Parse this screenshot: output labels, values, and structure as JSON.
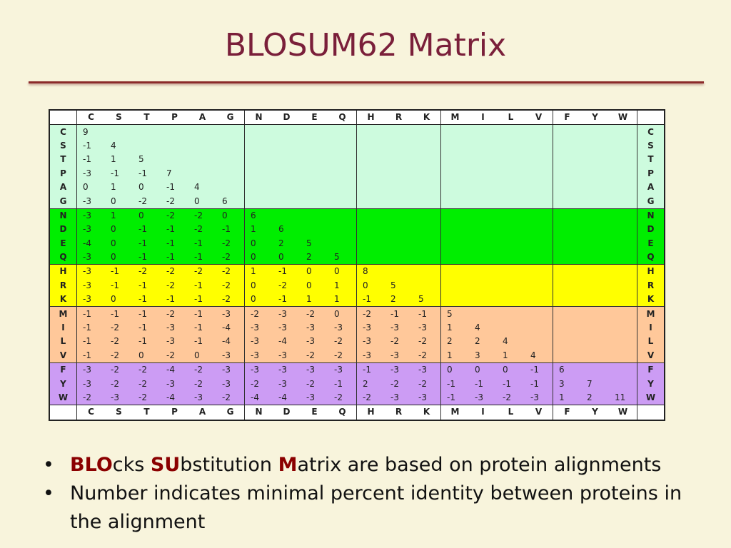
{
  "title": "BLOSUM62 Matrix",
  "matrix": {
    "labels": [
      "C",
      "S",
      "T",
      "P",
      "A",
      "G",
      "N",
      "D",
      "E",
      "Q",
      "H",
      "R",
      "K",
      "M",
      "I",
      "L",
      "V",
      "F",
      "Y",
      "W"
    ],
    "group_sizes": [
      6,
      4,
      3,
      4,
      3
    ],
    "group_colors": [
      "#cdfbde",
      "#00ee00",
      "#ffff00",
      "#ffc89a",
      "#cc9cf4"
    ],
    "rows": [
      [
        "9"
      ],
      [
        "-1",
        "4"
      ],
      [
        "-1",
        "1",
        "5"
      ],
      [
        "-3",
        "-1",
        "-1",
        "7"
      ],
      [
        "0",
        "1",
        "0",
        "-1",
        "4"
      ],
      [
        "-3",
        "0",
        "-2",
        "-2",
        "0",
        "6"
      ],
      [
        "-3",
        "1",
        "0",
        "-2",
        "-2",
        "0",
        "6"
      ],
      [
        "-3",
        "0",
        "-1",
        "-1",
        "-2",
        "-1",
        "1",
        "6"
      ],
      [
        "-4",
        "0",
        "-1",
        "-1",
        "-1",
        "-2",
        "0",
        "2",
        "5"
      ],
      [
        "-3",
        "0",
        "-1",
        "-1",
        "-1",
        "-2",
        "0",
        "0",
        "2",
        "5"
      ],
      [
        "-3",
        "-1",
        "-2",
        "-2",
        "-2",
        "-2",
        "1",
        "-1",
        "0",
        "0",
        "8"
      ],
      [
        "-3",
        "-1",
        "-1",
        "-2",
        "-1",
        "-2",
        "0",
        "-2",
        "0",
        "1",
        "0",
        "5"
      ],
      [
        "-3",
        "0",
        "-1",
        "-1",
        "-1",
        "-2",
        "0",
        "-1",
        "1",
        "1",
        "-1",
        "2",
        "5"
      ],
      [
        "-1",
        "-1",
        "-1",
        "-2",
        "-1",
        "-3",
        "-2",
        "-3",
        "-2",
        "0",
        "-2",
        "-1",
        "-1",
        "5"
      ],
      [
        "-1",
        "-2",
        "-1",
        "-3",
        "-1",
        "-4",
        "-3",
        "-3",
        "-3",
        "-3",
        "-3",
        "-3",
        "-3",
        "1",
        "4"
      ],
      [
        "-1",
        "-2",
        "-1",
        "-3",
        "-1",
        "-4",
        "-3",
        "-4",
        "-3",
        "-2",
        "-3",
        "-2",
        "-2",
        "2",
        "2",
        "4"
      ],
      [
        "-1",
        "-2",
        "0",
        "-2",
        "0",
        "-3",
        "-3",
        "-3",
        "-2",
        "-2",
        "-3",
        "-3",
        "-2",
        "1",
        "3",
        "1",
        "4"
      ],
      [
        "-3",
        "-2",
        "-2",
        "-4",
        "-2",
        "-3",
        "-3",
        "-3",
        "-3",
        "-3",
        "-1",
        "-3",
        "-3",
        "0",
        "0",
        "0",
        "-1",
        "6"
      ],
      [
        "-3",
        "-2",
        "-2",
        "-3",
        "-2",
        "-3",
        "-2",
        "-3",
        "-2",
        "-1",
        "2",
        "-2",
        "-2",
        "-1",
        "-1",
        "-1",
        "-1",
        "3",
        "7"
      ],
      [
        "-2",
        "-3",
        "-2",
        "-4",
        "-3",
        "-2",
        "-4",
        "-4",
        "-3",
        "-2",
        "-2",
        "-3",
        "-3",
        "-1",
        "-3",
        "-2",
        "-3",
        "1",
        "2",
        "11"
      ]
    ]
  },
  "bullets": [
    {
      "marker": "•",
      "parts": [
        {
          "text": "BLO",
          "hl": true
        },
        {
          "text": "cks ",
          "hl": false
        },
        {
          "text": "SU",
          "hl": true
        },
        {
          "text": "bstitution ",
          "hl": false
        },
        {
          "text": "M",
          "hl": true
        },
        {
          "text": "atrix are based on protein alignments",
          "hl": false
        }
      ]
    },
    {
      "marker": "•",
      "parts": [
        {
          "text": "Number indicates minimal percent identity between proteins in the alignment",
          "hl": false
        }
      ]
    }
  ]
}
